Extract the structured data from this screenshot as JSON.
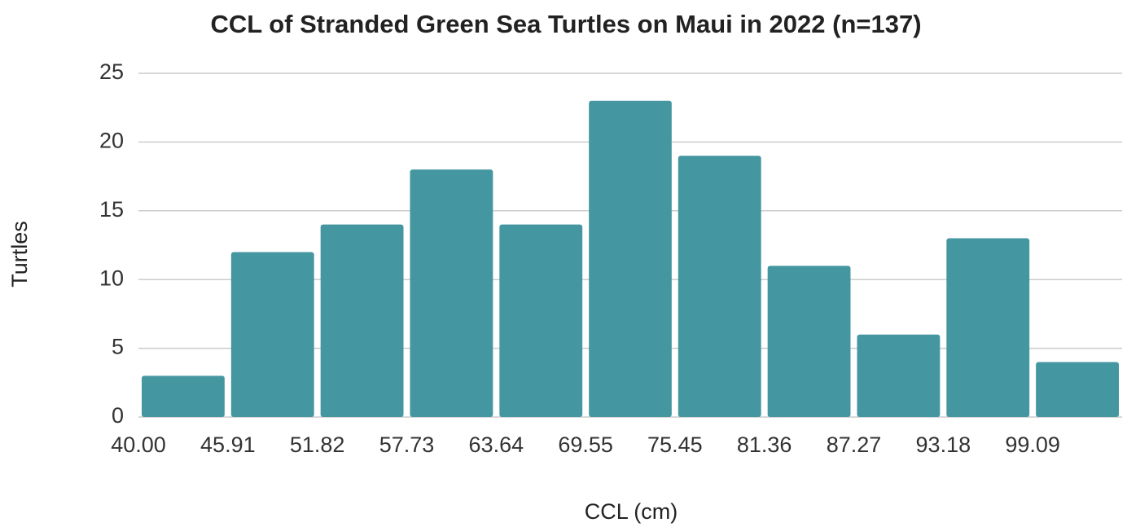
{
  "chart_data": {
    "type": "histogram",
    "title": "CCL of Stranded Green Sea Turtles on Maui in 2022 (n=137)",
    "x_label": "CCL (cm)",
    "y_label": "Turtles",
    "bins": [
      40.0,
      45.91,
      51.82,
      57.73,
      63.64,
      69.55,
      75.45,
      81.36,
      87.27,
      93.18,
      99.09,
      105.0
    ],
    "values": [
      3,
      12,
      14,
      18,
      14,
      23,
      19,
      11,
      6,
      13,
      4
    ],
    "color": "#4496a0",
    "xlim": [
      40,
      105
    ],
    "xticks": [
      {
        "value": 40,
        "label": "40.00"
      },
      {
        "value": 45.91,
        "label": "45.91"
      },
      {
        "value": 51.82,
        "label": "51.82"
      },
      {
        "value": 57.73,
        "label": "57.73"
      },
      {
        "value": 63.64,
        "label": "63.64"
      },
      {
        "value": 69.55,
        "label": "69.55"
      },
      {
        "value": 75.45,
        "label": "75.45"
      },
      {
        "value": 81.36,
        "label": "81.36"
      },
      {
        "value": 87.27,
        "label": "87.27"
      },
      {
        "value": 93.18,
        "label": "93.18"
      },
      {
        "value": 99.09,
        "label": "99.09"
      }
    ],
    "ylim": [
      0,
      25
    ],
    "yticks": [
      0,
      5,
      10,
      15,
      20,
      25
    ],
    "grid": true
  }
}
